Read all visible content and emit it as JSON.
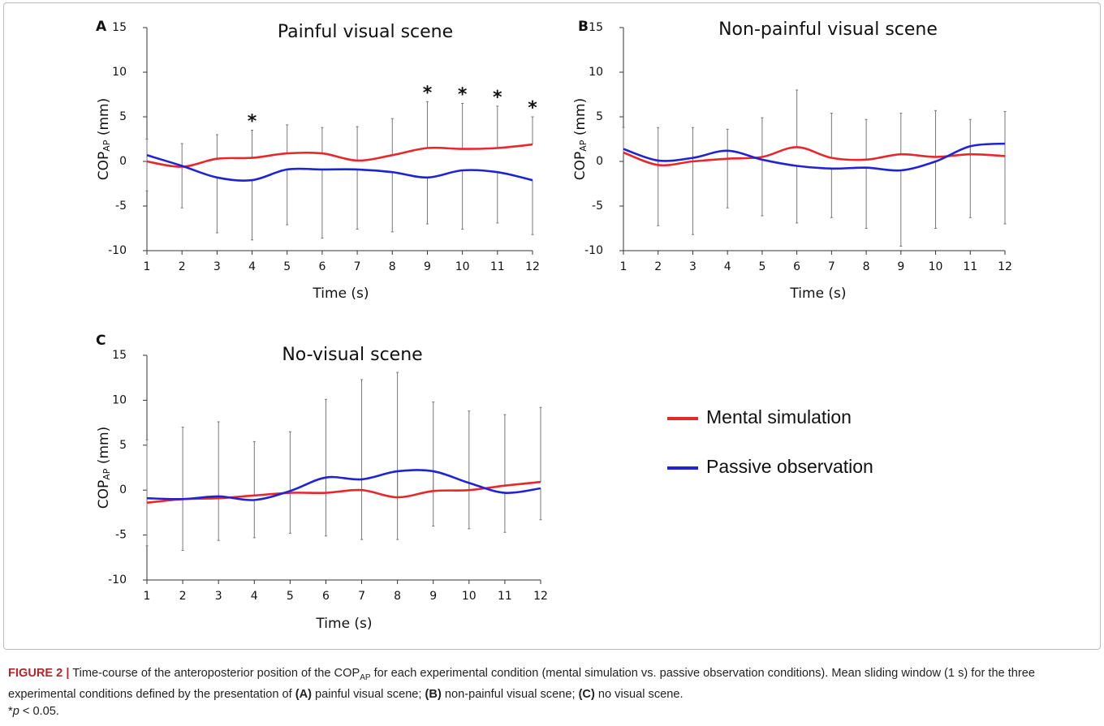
{
  "chart_data": [
    {
      "type": "line",
      "panel": "A",
      "title": "Painful visual scene",
      "xlabel": "Time (s)",
      "ylabel": [
        "COP",
        "AP",
        "(mm)"
      ],
      "x": [
        1,
        2,
        3,
        4,
        5,
        6,
        7,
        8,
        9,
        10,
        11,
        12
      ],
      "xlim": [
        1,
        12
      ],
      "xticks": [
        1,
        2,
        3,
        4,
        5,
        6,
        7,
        8,
        9,
        10,
        11,
        12
      ],
      "ylim": [
        -10,
        15
      ],
      "yticks": [
        -10,
        -5,
        0,
        5,
        10,
        15
      ],
      "series": [
        {
          "name": "Mental simulation",
          "color": "#e8272b",
          "error_direction": "up",
          "values": [
            0,
            -0.6,
            0.3,
            0.4,
            0.9,
            0.9,
            0.1,
            0.7,
            1.5,
            1.4,
            1.5,
            1.9
          ],
          "errors": [
            2.5,
            2.6,
            2.7,
            3.1,
            3.2,
            2.9,
            3.8,
            4.1,
            5.2,
            5.1,
            4.7,
            3.1
          ]
        },
        {
          "name": "Passive observation",
          "color": "#1f23d6",
          "error_direction": "down",
          "values": [
            0.7,
            -0.5,
            -1.8,
            -2.1,
            -0.9,
            -0.9,
            -0.9,
            -1.2,
            -1.8,
            -1.0,
            -1.2,
            -2.1
          ],
          "errors": [
            4.0,
            4.7,
            6.2,
            6.7,
            6.2,
            7.7,
            6.7,
            6.7,
            5.2,
            6.6,
            5.7,
            6.1
          ]
        }
      ],
      "annotations": [
        {
          "x": 4,
          "text": "*"
        },
        {
          "x": 9,
          "text": "*"
        },
        {
          "x": 10,
          "text": "*"
        },
        {
          "x": 11,
          "text": "*"
        },
        {
          "x": 12,
          "text": "*"
        }
      ]
    },
    {
      "type": "line",
      "panel": "B",
      "title": "Non-painful visual scene",
      "xlabel": "Time (s)",
      "ylabel": [
        "COP",
        "AP",
        "(mm)"
      ],
      "x": [
        1,
        2,
        3,
        4,
        5,
        6,
        7,
        8,
        9,
        10,
        11,
        12
      ],
      "xlim": [
        1,
        12
      ],
      "xticks": [
        1,
        2,
        3,
        4,
        5,
        6,
        7,
        8,
        9,
        10,
        11,
        12
      ],
      "ylim": [
        -10,
        15
      ],
      "yticks": [
        -10,
        -5,
        0,
        5,
        10,
        15
      ],
      "series": [
        {
          "color": "#e8272b",
          "error_direction": "up",
          "values": [
            1.0,
            -0.4,
            0,
            0.3,
            0.5,
            1.6,
            0.4,
            0.2,
            0.8,
            0.5,
            0.8,
            0.6
          ],
          "errors": [
            2.8,
            4.2,
            3.8,
            3.3,
            4.4,
            6.4,
            5.0,
            4.5,
            4.6,
            5.2,
            3.9,
            5.0
          ]
        },
        {
          "color": "#1f23d6",
          "error_direction": "down",
          "values": [
            1.4,
            0.1,
            0.4,
            1.2,
            0.2,
            -0.5,
            -0.8,
            -0.7,
            -1.0,
            0,
            1.7,
            2.0
          ],
          "errors": [
            null,
            7.3,
            8.6,
            6.4,
            6.3,
            6.4,
            5.5,
            6.8,
            8.5,
            7.5,
            8.0,
            9.0
          ]
        }
      ]
    },
    {
      "type": "line",
      "panel": "C",
      "title": "No-visual scene",
      "xlabel": "Time (s)",
      "ylabel": [
        "COP",
        "AP",
        "(mm)"
      ],
      "x": [
        1,
        2,
        3,
        4,
        5,
        6,
        7,
        8,
        9,
        10,
        11,
        12
      ],
      "xlim": [
        1,
        12
      ],
      "xticks": [
        1,
        2,
        3,
        4,
        5,
        6,
        7,
        8,
        9,
        10,
        11,
        12
      ],
      "ylim": [
        -10,
        15
      ],
      "yticks": [
        -10,
        -5,
        0,
        5,
        10,
        15
      ],
      "series": [
        {
          "color": "#e8272b",
          "error_direction": "up",
          "values": [
            -1.4,
            -1.0,
            -0.9,
            -0.6,
            -0.3,
            -0.3,
            0,
            -0.8,
            -0.1,
            0,
            0.5,
            0.9
          ],
          "errors": [
            7.0,
            8.0,
            8.5,
            6.0,
            6.8,
            10.4,
            12.3,
            13.9,
            9.9,
            8.8,
            7.9,
            8.3
          ]
        },
        {
          "color": "#1f23d6",
          "error_direction": "down",
          "values": [
            -0.9,
            -1.0,
            -0.7,
            -1.1,
            -0.1,
            1.4,
            1.2,
            2.1,
            2.1,
            0.8,
            -0.3,
            0.2
          ],
          "errors": [
            5.3,
            5.7,
            4.9,
            4.2,
            4.7,
            6.5,
            6.7,
            7.6,
            6.1,
            5.1,
            4.4,
            3.5
          ]
        }
      ]
    }
  ],
  "caption": {
    "runs": [
      {
        "text": "FIGURE 2 |",
        "style": "label"
      },
      {
        "text": " Time-course of the anteroposterior position of the COP",
        "style": "plain"
      },
      {
        "text": "AP",
        "style": "sub"
      },
      {
        "text": " for each experimental condition (mental simulation vs. passive observation conditions). Mean sliding window (1 s) for the three experimental conditions defined by the presentation of ",
        "style": "plain"
      },
      {
        "text": "(A)",
        "style": "bold"
      },
      {
        "text": " painful visual scene; ",
        "style": "plain"
      },
      {
        "text": "(B)",
        "style": "bold"
      },
      {
        "text": " non-painful visual scene; ",
        "style": "plain"
      },
      {
        "text": "(C)",
        "style": "bold"
      },
      {
        "text": " no visual scene.",
        "style": "plain"
      }
    ],
    "footnote": [
      {
        "text": "*",
        "style": "plain"
      },
      {
        "text": "p",
        "style": "italic"
      },
      {
        "text": " < 0.05.",
        "style": "plain"
      }
    ]
  }
}
